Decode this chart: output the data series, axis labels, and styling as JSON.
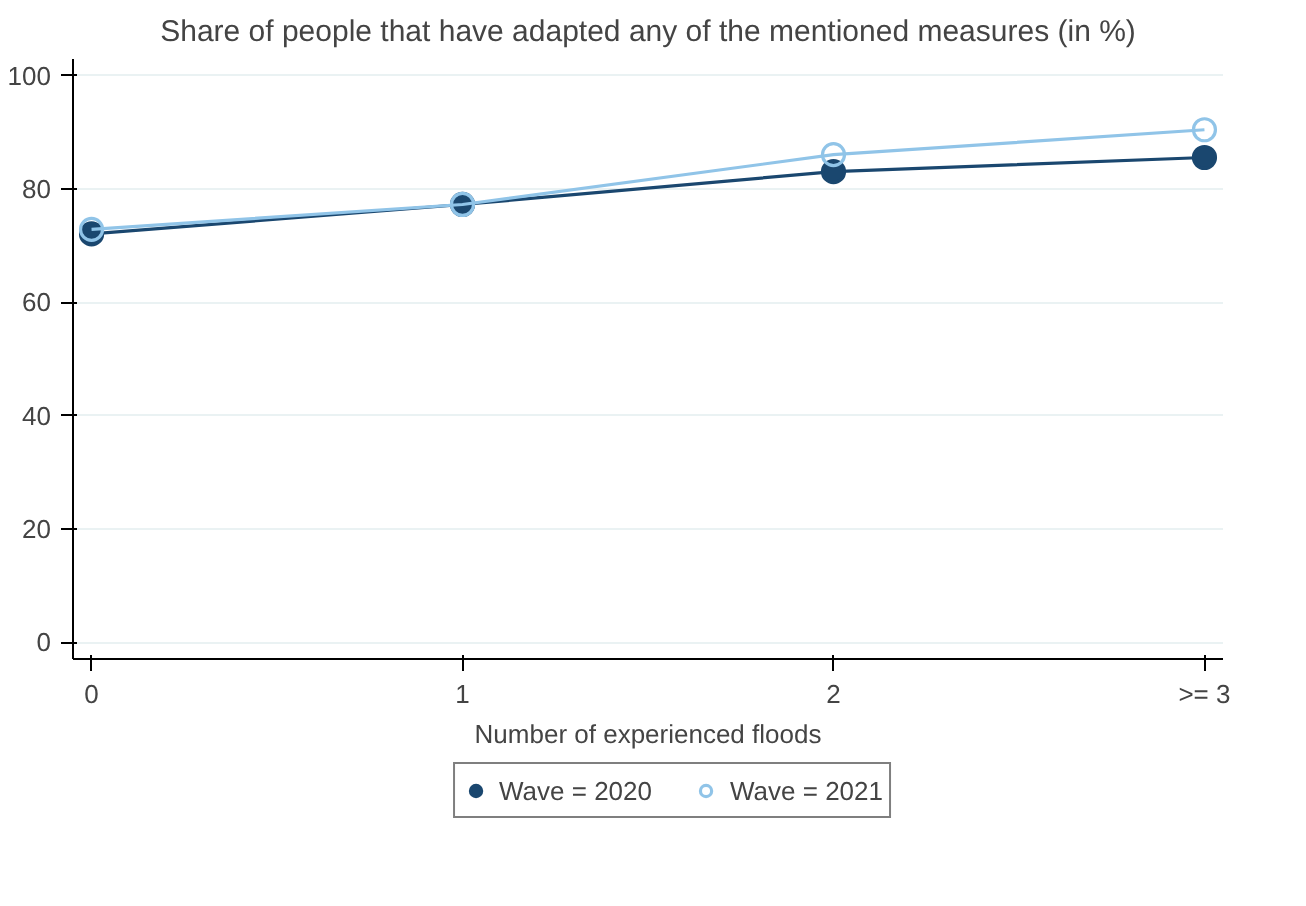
{
  "chart_data": {
    "type": "line",
    "title": "Share of people that have adapted any of the mentioned measures (in %)",
    "xlabel": "Number of experienced floods",
    "x": [
      0,
      1,
      2,
      3
    ],
    "series": [
      {
        "name": "Wave = 2020",
        "color": "#1a476f",
        "values": [
          72.1,
          77.3,
          83.1,
          85.6
        ],
        "marker": "circle"
      },
      {
        "name": "Wave = 2021",
        "color": "#90c4e8",
        "values": [
          72.9,
          77.3,
          86.1,
          90.5
        ],
        "marker": "circle_open"
      }
    ],
    "xlim": [
      -0.05,
      3.05
    ],
    "xticks": [
      0,
      1,
      2,
      {
        "value": 3,
        "label": ">= 3"
      }
    ],
    "ylim": [
      -3,
      103
    ],
    "yticks": [
      0,
      20,
      40,
      60,
      80,
      100
    ],
    "grid": "y",
    "legend": "bottom",
    "line_style": "solid"
  }
}
